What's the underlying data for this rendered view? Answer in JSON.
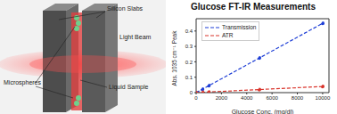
{
  "diagram": {
    "labels": [
      "Silicon Slabs",
      "Light Beam",
      "Microspheres",
      "Liquid Sample"
    ]
  },
  "chart_data": {
    "type": "line",
    "title": "Glucose FT-IR Measurements",
    "x_label": "Glucose Conc. (mg/dl)",
    "y_label": "Abs. 1035 cm⁻¹ Peak",
    "x": [
      0,
      500,
      1000,
      5000,
      10000
    ],
    "series": [
      {
        "name": "Transmission",
        "color": "#1f3fd6",
        "values": [
          0.0,
          0.022,
          0.045,
          0.225,
          0.45
        ],
        "line_style": "dashed",
        "marker": "circle"
      },
      {
        "name": "ATR",
        "color": "#d9342b",
        "values": [
          0.0,
          0.002,
          0.004,
          0.02,
          0.04
        ],
        "line_style": "dashed",
        "marker": "circle"
      }
    ],
    "xlim": [
      0,
      10500
    ],
    "ylim": [
      0,
      0.48
    ],
    "xticks": [
      0,
      2000,
      4000,
      6000,
      8000,
      10000
    ],
    "yticks": [
      0,
      0.1,
      0.2,
      0.3,
      0.4
    ],
    "grid": false,
    "legend": "upper left"
  }
}
